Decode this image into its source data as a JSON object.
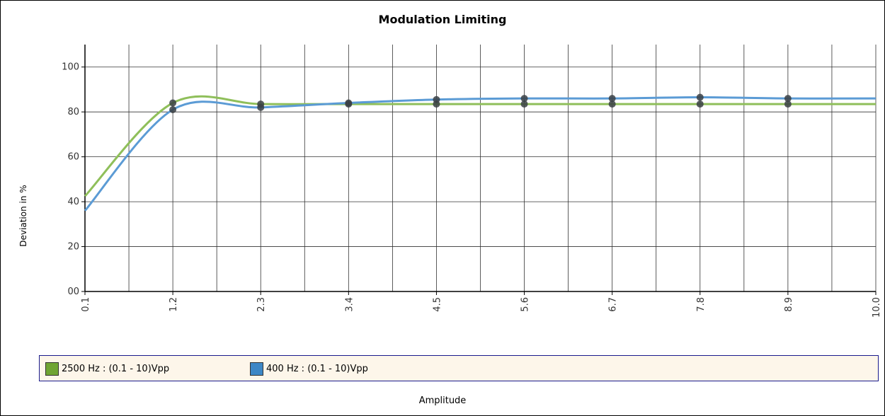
{
  "chart_data": {
    "type": "line",
    "title": "Modulation Limiting",
    "xlabel": "Amplitude",
    "ylabel": "Deviation in %",
    "categories": [
      "0.1",
      "1.2",
      "2.3",
      "3.4",
      "4.5",
      "5.6",
      "6.7",
      "7.8",
      "8.9",
      "10.0"
    ],
    "y_tick_labels": [
      "00",
      "20",
      "40",
      "60",
      "80",
      "100"
    ],
    "ylim": [
      0,
      110
    ],
    "grid": true,
    "legend_position": "bottom",
    "series": [
      {
        "name": "2500 Hz : (0.1 - 10)Vpp",
        "color": "#8fbf5a",
        "swatch_color": "#6fa534",
        "x": [
          0.1,
          1.2,
          2.3,
          3.4,
          4.5,
          5.6,
          6.7,
          7.8,
          8.9,
          10.0
        ],
        "values": [
          42.5,
          84,
          83.5,
          83.5,
          83.5,
          83.5,
          83.5,
          83.5,
          83.5,
          83.5
        ]
      },
      {
        "name": "400 Hz : (0.1 - 10)Vpp",
        "color": "#5b9bd5",
        "swatch_color": "#3d87c6",
        "x": [
          0.1,
          1.2,
          2.3,
          3.4,
          4.5,
          5.6,
          6.7,
          7.8,
          8.9,
          10.0
        ],
        "values": [
          36,
          81,
          82,
          84,
          85.5,
          86,
          86,
          86.5,
          86,
          86
        ]
      }
    ]
  }
}
